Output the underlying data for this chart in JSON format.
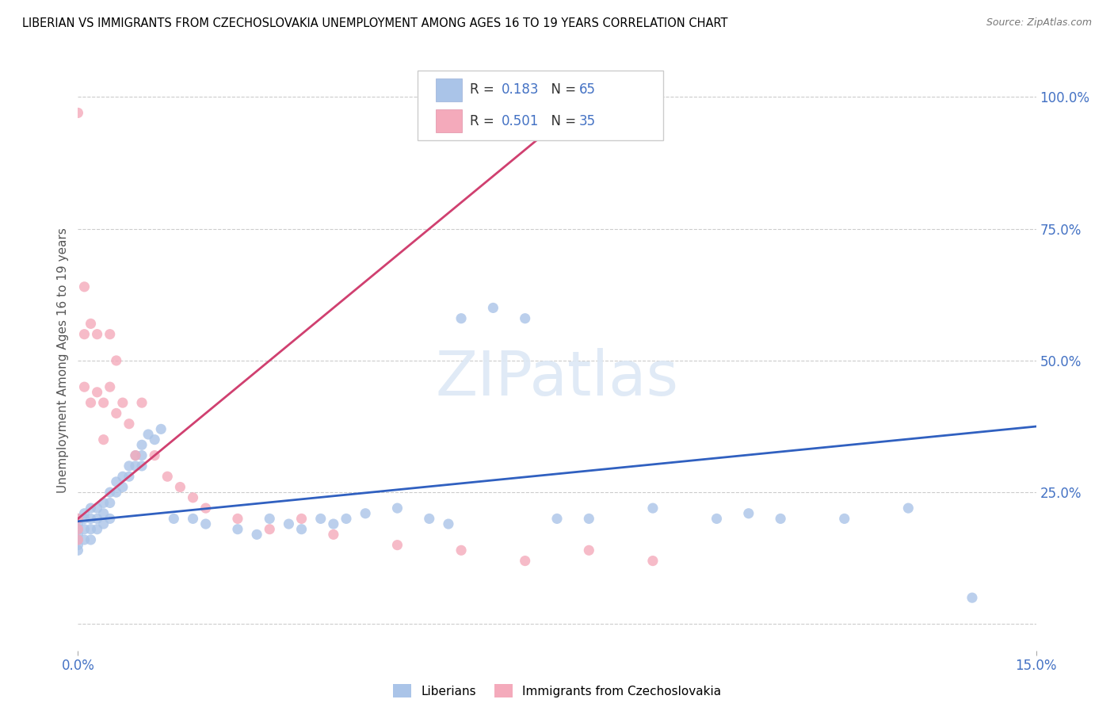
{
  "title": "LIBERIAN VS IMMIGRANTS FROM CZECHOSLOVAKIA UNEMPLOYMENT AMONG AGES 16 TO 19 YEARS CORRELATION CHART",
  "source": "Source: ZipAtlas.com",
  "ylabel": "Unemployment Among Ages 16 to 19 years",
  "y_ticks": [
    0.0,
    0.25,
    0.5,
    0.75,
    1.0
  ],
  "y_tick_labels": [
    "",
    "25.0%",
    "50.0%",
    "75.0%",
    "100.0%"
  ],
  "x_lim": [
    0.0,
    0.15
  ],
  "y_lim": [
    -0.05,
    1.05
  ],
  "liberian_R": 0.183,
  "liberian_N": 65,
  "czech_R": 0.501,
  "czech_N": 35,
  "liberian_color": "#aac4e8",
  "czech_color": "#f4aabb",
  "liberian_line_color": "#3060c0",
  "czech_line_color": "#d04070",
  "tick_color": "#4472c4",
  "grid_color": "#cccccc",
  "watermark_color": "#dde8f5",
  "liberian_x": [
    0.0,
    0.0,
    0.0,
    0.0,
    0.0,
    0.0,
    0.0,
    0.001,
    0.001,
    0.001,
    0.001,
    0.002,
    0.002,
    0.002,
    0.002,
    0.003,
    0.003,
    0.003,
    0.004,
    0.004,
    0.004,
    0.005,
    0.005,
    0.005,
    0.006,
    0.006,
    0.007,
    0.007,
    0.008,
    0.008,
    0.009,
    0.009,
    0.01,
    0.01,
    0.01,
    0.011,
    0.012,
    0.013,
    0.015,
    0.018,
    0.02,
    0.025,
    0.028,
    0.03,
    0.033,
    0.035,
    0.038,
    0.04,
    0.042,
    0.045,
    0.05,
    0.055,
    0.058,
    0.06,
    0.065,
    0.07,
    0.075,
    0.08,
    0.09,
    0.1,
    0.105,
    0.11,
    0.12,
    0.13,
    0.14
  ],
  "liberian_y": [
    0.2,
    0.19,
    0.18,
    0.17,
    0.16,
    0.15,
    0.14,
    0.21,
    0.2,
    0.18,
    0.16,
    0.22,
    0.2,
    0.18,
    0.16,
    0.22,
    0.2,
    0.18,
    0.23,
    0.21,
    0.19,
    0.25,
    0.23,
    0.2,
    0.27,
    0.25,
    0.28,
    0.26,
    0.3,
    0.28,
    0.32,
    0.3,
    0.34,
    0.32,
    0.3,
    0.36,
    0.35,
    0.37,
    0.2,
    0.2,
    0.19,
    0.18,
    0.17,
    0.2,
    0.19,
    0.18,
    0.2,
    0.19,
    0.2,
    0.21,
    0.22,
    0.2,
    0.19,
    0.58,
    0.6,
    0.58,
    0.2,
    0.2,
    0.22,
    0.2,
    0.21,
    0.2,
    0.2,
    0.22,
    0.05
  ],
  "czech_x": [
    0.0,
    0.0,
    0.0,
    0.0,
    0.001,
    0.001,
    0.001,
    0.002,
    0.002,
    0.003,
    0.003,
    0.004,
    0.004,
    0.005,
    0.005,
    0.006,
    0.006,
    0.007,
    0.008,
    0.009,
    0.01,
    0.012,
    0.014,
    0.016,
    0.018,
    0.02,
    0.025,
    0.03,
    0.035,
    0.04,
    0.05,
    0.06,
    0.07,
    0.08,
    0.09
  ],
  "czech_y": [
    0.97,
    0.2,
    0.18,
    0.16,
    0.64,
    0.55,
    0.45,
    0.57,
    0.42,
    0.55,
    0.44,
    0.42,
    0.35,
    0.55,
    0.45,
    0.5,
    0.4,
    0.42,
    0.38,
    0.32,
    0.42,
    0.32,
    0.28,
    0.26,
    0.24,
    0.22,
    0.2,
    0.18,
    0.2,
    0.17,
    0.15,
    0.14,
    0.12,
    0.14,
    0.12
  ],
  "lib_line_x0": 0.0,
  "lib_line_y0": 0.195,
  "lib_line_x1": 0.15,
  "lib_line_y1": 0.375,
  "cz_line_x0": 0.0,
  "cz_line_y0": 0.2,
  "cz_line_x1": 0.08,
  "cz_line_y1": 1.0
}
